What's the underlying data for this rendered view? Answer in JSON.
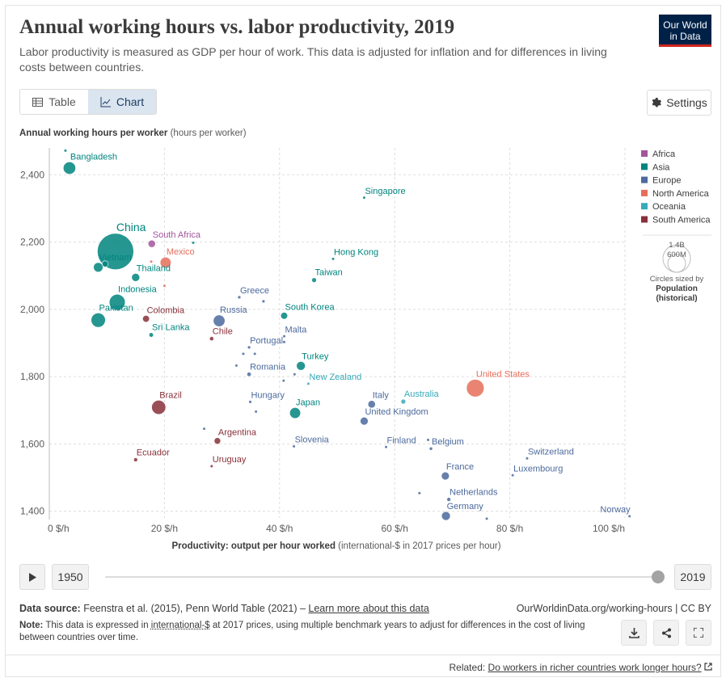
{
  "header": {
    "title": "Annual working hours vs. labor productivity, 2019",
    "subtitle": "Labor productivity is measured as GDP per hour of work. This data is adjusted for inflation and for differences in living costs between countries.",
    "logo_line1": "Our World",
    "logo_line2": "in Data"
  },
  "tabs": {
    "table": "Table",
    "chart": "Chart"
  },
  "settings_label": "Settings",
  "timeline": {
    "start": "1950",
    "end": "2019"
  },
  "footer": {
    "source_label": "Data source:",
    "source_text": "Feenstra et al. (2015), Penn World Table (2021) –",
    "source_link": "Learn more about this data",
    "url": "OurWorldinData.org/working-hours | CC BY",
    "note_label": "Note:",
    "note_pre": "This data is expressed in",
    "note_link": "international-$",
    "note_post": "at 2017 prices, using multiple benchmark years to adjust for differences in the cost of living between countries over time.",
    "related_label": "Related:",
    "related_link": "Do workers in richer countries work longer hours?"
  },
  "chart_data": {
    "type": "scatter",
    "title": "Annual working hours vs. labor productivity, 2019",
    "ylabel_bold": "Annual working hours per worker",
    "ylabel_unit": "(hours per worker)",
    "xlabel_bold": "Productivity: output per hour worked",
    "xlabel_unit": "(international-$ in 2017 prices per hour)",
    "xlim": [
      0,
      100
    ],
    "ylim": [
      1380,
      2480
    ],
    "xticks": [
      0,
      20,
      40,
      60,
      80,
      100
    ],
    "xtick_labels": [
      "0 $/h",
      "20 $/h",
      "40 $/h",
      "60 $/h",
      "80 $/h",
      "100 $/h"
    ],
    "yticks": [
      1400,
      1600,
      1800,
      2000,
      2200,
      2400
    ],
    "ytick_labels": [
      "1,400",
      "1,600",
      "1,800",
      "2,000",
      "2,200",
      "2,400"
    ],
    "grid": true,
    "legend_position": "right",
    "legend": [
      {
        "name": "Africa",
        "color": "#a2559c"
      },
      {
        "name": "Asia",
        "color": "#00847e"
      },
      {
        "name": "Europe",
        "color": "#4c6a9c"
      },
      {
        "name": "North America",
        "color": "#e56e5a"
      },
      {
        "name": "Oceania",
        "color": "#38aaba"
      },
      {
        "name": "South America",
        "color": "#883039"
      }
    ],
    "size_legend": {
      "big": "1.4B",
      "small": "600M",
      "caption1": "Circles sized by",
      "caption2": "Population",
      "caption3": "(historical)"
    },
    "points": [
      {
        "label": "Bangladesh",
        "x": 3.5,
        "y": 2420,
        "pop": 163,
        "region": "Asia"
      },
      {
        "label": "China",
        "x": 11.5,
        "y": 2172,
        "pop": 1400,
        "region": "Asia"
      },
      {
        "label": "Vietnam",
        "x": 8.5,
        "y": 2125,
        "pop": 96,
        "region": "Asia"
      },
      {
        "label": "South Africa",
        "x": 17.8,
        "y": 2195,
        "pop": 58,
        "region": "Africa"
      },
      {
        "label": "Mexico",
        "x": 20.2,
        "y": 2139,
        "pop": 127,
        "region": "North America"
      },
      {
        "label": "Thailand",
        "x": 15.0,
        "y": 2095,
        "pop": 70,
        "region": "Asia"
      },
      {
        "label": "Indonesia",
        "x": 11.8,
        "y": 2021,
        "pop": 270,
        "region": "Asia"
      },
      {
        "label": "Pakistan",
        "x": 8.5,
        "y": 1968,
        "pop": 216,
        "region": "Asia"
      },
      {
        "label": "Colombia",
        "x": 16.8,
        "y": 1972,
        "pop": 50,
        "region": "South America"
      },
      {
        "label": "Sri Lanka",
        "x": 17.7,
        "y": 1924,
        "pop": 21,
        "region": "Asia"
      },
      {
        "label": "Chile",
        "x": 28.2,
        "y": 1913,
        "pop": 19,
        "region": "South America"
      },
      {
        "label": "Greece",
        "x": 33.0,
        "y": 2036,
        "pop": 10.7,
        "region": "Europe"
      },
      {
        "label": "Russia",
        "x": 29.5,
        "y": 1966,
        "pop": 145,
        "region": "Europe"
      },
      {
        "label": "South Korea",
        "x": 40.8,
        "y": 1981,
        "pop": 51,
        "region": "Asia"
      },
      {
        "label": "Malta",
        "x": 40.8,
        "y": 1920,
        "pop": 0.5,
        "region": "Europe"
      },
      {
        "label": "Portugal",
        "x": 34.7,
        "y": 1887,
        "pop": 10.2,
        "region": "Europe"
      },
      {
        "label": "Hong Kong",
        "x": 49.3,
        "y": 2150,
        "pop": 7.5,
        "region": "Asia"
      },
      {
        "label": "Taiwan",
        "x": 46.0,
        "y": 2087,
        "pop": 23.6,
        "region": "Asia"
      },
      {
        "label": "Singapore",
        "x": 54.7,
        "y": 2332,
        "pop": 5.8,
        "region": "Asia"
      },
      {
        "label": "Turkey",
        "x": 43.7,
        "y": 1832,
        "pop": 83,
        "region": "Asia"
      },
      {
        "label": "Romania",
        "x": 34.7,
        "y": 1807,
        "pop": 19.4,
        "region": "Europe"
      },
      {
        "label": "New Zealand",
        "x": 45.0,
        "y": 1779,
        "pop": 4.9,
        "region": "Oceania"
      },
      {
        "label": "United States",
        "x": 74.0,
        "y": 1766,
        "pop": 329,
        "region": "North America"
      },
      {
        "label": "Hungary",
        "x": 34.9,
        "y": 1725,
        "pop": 9.7,
        "region": "Europe"
      },
      {
        "label": "Japan",
        "x": 42.7,
        "y": 1692,
        "pop": 126,
        "region": "Asia"
      },
      {
        "label": "Australia",
        "x": 61.5,
        "y": 1726,
        "pop": 25,
        "region": "Oceania"
      },
      {
        "label": "Italy",
        "x": 56.0,
        "y": 1718,
        "pop": 60,
        "region": "Europe"
      },
      {
        "label": "United Kingdom",
        "x": 54.7,
        "y": 1668,
        "pop": 67,
        "region": "Europe"
      },
      {
        "label": "Brazil",
        "x": 19.0,
        "y": 1709,
        "pop": 211,
        "region": "South America"
      },
      {
        "label": "Argentina",
        "x": 29.2,
        "y": 1609,
        "pop": 45,
        "region": "South America"
      },
      {
        "label": "Slovenia",
        "x": 42.5,
        "y": 1593,
        "pop": 2.1,
        "region": "Europe"
      },
      {
        "label": "Finland",
        "x": 58.5,
        "y": 1591,
        "pop": 5.5,
        "region": "Europe"
      },
      {
        "label": "Belgium",
        "x": 66.3,
        "y": 1586,
        "pop": 11.5,
        "region": "Europe"
      },
      {
        "label": "Ecuador",
        "x": 15.0,
        "y": 1553,
        "pop": 17,
        "region": "South America"
      },
      {
        "label": "Uruguay",
        "x": 28.2,
        "y": 1534,
        "pop": 3.5,
        "region": "South America"
      },
      {
        "label": "Switzerland",
        "x": 83.0,
        "y": 1557,
        "pop": 8.6,
        "region": "Europe"
      },
      {
        "label": "France",
        "x": 68.8,
        "y": 1505,
        "pop": 67,
        "region": "Europe"
      },
      {
        "label": "Luxembourg",
        "x": 80.5,
        "y": 1507,
        "pop": 0.6,
        "region": "Europe"
      },
      {
        "label": "Netherlands",
        "x": 69.4,
        "y": 1435,
        "pop": 17,
        "region": "Europe"
      },
      {
        "label": "Germany",
        "x": 68.9,
        "y": 1386,
        "pop": 83,
        "region": "Europe"
      },
      {
        "label": "Norway",
        "x": 100.8,
        "y": 1385,
        "pop": 5.3,
        "region": "Europe"
      },
      {
        "label": "",
        "x": 2.8,
        "y": 2472,
        "pop": 4,
        "region": "Asia"
      },
      {
        "label": "",
        "x": 25.0,
        "y": 2198,
        "pop": 5,
        "region": "Asia"
      },
      {
        "label": "",
        "x": 9.7,
        "y": 2135,
        "pop": 40,
        "region": "Asia"
      },
      {
        "label": "",
        "x": 17.7,
        "y": 2142,
        "pop": 5,
        "region": "North America"
      },
      {
        "label": "",
        "x": 20.0,
        "y": 2070,
        "pop": 5,
        "region": "North America"
      },
      {
        "label": "",
        "x": 37.2,
        "y": 2024,
        "pop": 10,
        "region": "Europe"
      },
      {
        "label": "",
        "x": 40.8,
        "y": 1903,
        "pop": 3,
        "region": "Europe"
      },
      {
        "label": "",
        "x": 33.7,
        "y": 1868,
        "pop": 3,
        "region": "Europe"
      },
      {
        "label": "",
        "x": 35.7,
        "y": 1868,
        "pop": 3,
        "region": "Europe"
      },
      {
        "label": "",
        "x": 32.5,
        "y": 1833,
        "pop": 3,
        "region": "Europe"
      },
      {
        "label": "",
        "x": 40.7,
        "y": 1788,
        "pop": 3,
        "region": "Europe"
      },
      {
        "label": "",
        "x": 42.6,
        "y": 1807,
        "pop": 3,
        "region": "Europe"
      },
      {
        "label": "",
        "x": 35.9,
        "y": 1696,
        "pop": 3,
        "region": "Europe"
      },
      {
        "label": "",
        "x": 26.9,
        "y": 1645,
        "pop": 3,
        "region": "Europe"
      },
      {
        "label": "",
        "x": 64.3,
        "y": 1454,
        "pop": 3,
        "region": "Europe"
      },
      {
        "label": "",
        "x": 65.8,
        "y": 1612,
        "pop": 3,
        "region": "Europe"
      },
      {
        "label": "",
        "x": 76.0,
        "y": 1378,
        "pop": 3,
        "region": "Europe"
      }
    ]
  }
}
